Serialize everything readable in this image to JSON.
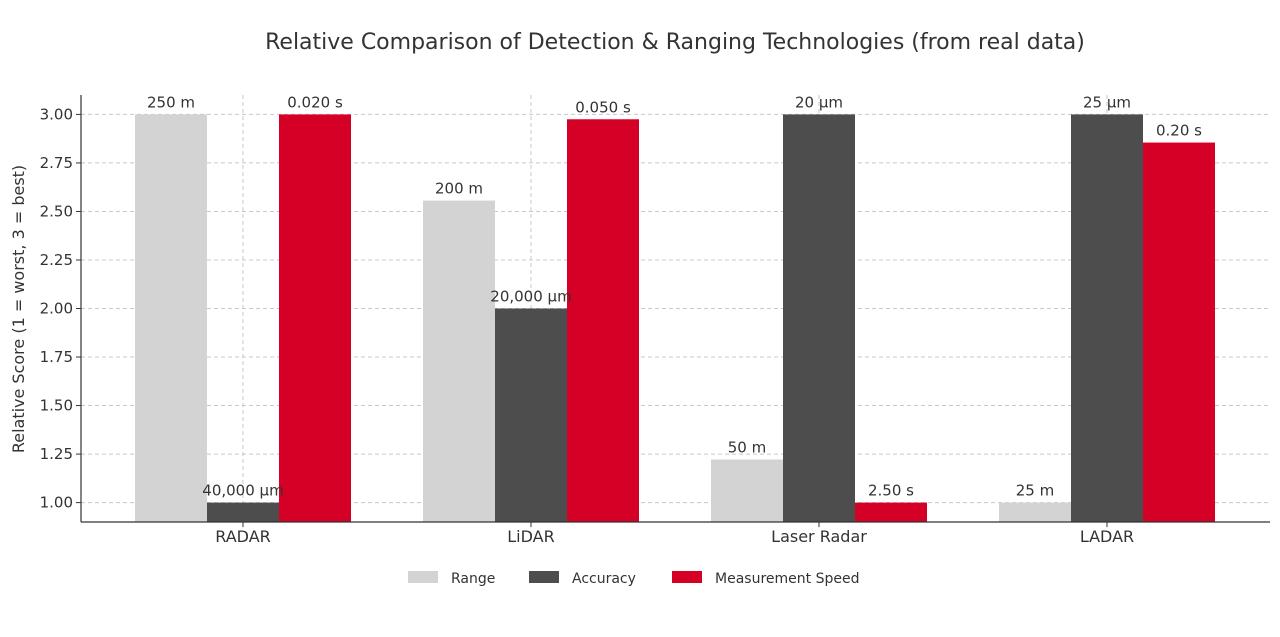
{
  "chart_data": {
    "type": "bar",
    "title": "Relative Comparison of Detection & Ranging Technologies (from real data)",
    "xlabel": "",
    "ylabel": "Relative Score (1 = worst, 3 = best)",
    "ylim": [
      0.9,
      3.1
    ],
    "yticks": [
      "1.00",
      "1.25",
      "1.50",
      "1.75",
      "2.00",
      "2.25",
      "2.50",
      "2.75",
      "3.00"
    ],
    "grid": true,
    "legend_position": "bottom",
    "categories": [
      "RADAR",
      "LiDAR",
      "Laser Radar",
      "LADAR"
    ],
    "series": [
      {
        "name": "Range",
        "color": "#d3d3d3",
        "values": [
          3.0,
          2.556,
          1.222,
          1.0
        ],
        "labels": [
          "250 m",
          "200 m",
          "50 m",
          "25 m"
        ]
      },
      {
        "name": "Accuracy",
        "color": "#4d4d4d",
        "values": [
          1.0,
          2.0,
          3.0,
          3.0
        ],
        "labels": [
          "40,000 µm",
          "20,000 µm",
          "20 µm",
          "25 µm"
        ]
      },
      {
        "name": "Measurement Speed",
        "color": "#d50025",
        "values": [
          3.0,
          2.975,
          1.0,
          2.855
        ],
        "labels": [
          "0.020 s",
          "0.050 s",
          "2.50 s",
          "0.20 s"
        ]
      }
    ]
  }
}
